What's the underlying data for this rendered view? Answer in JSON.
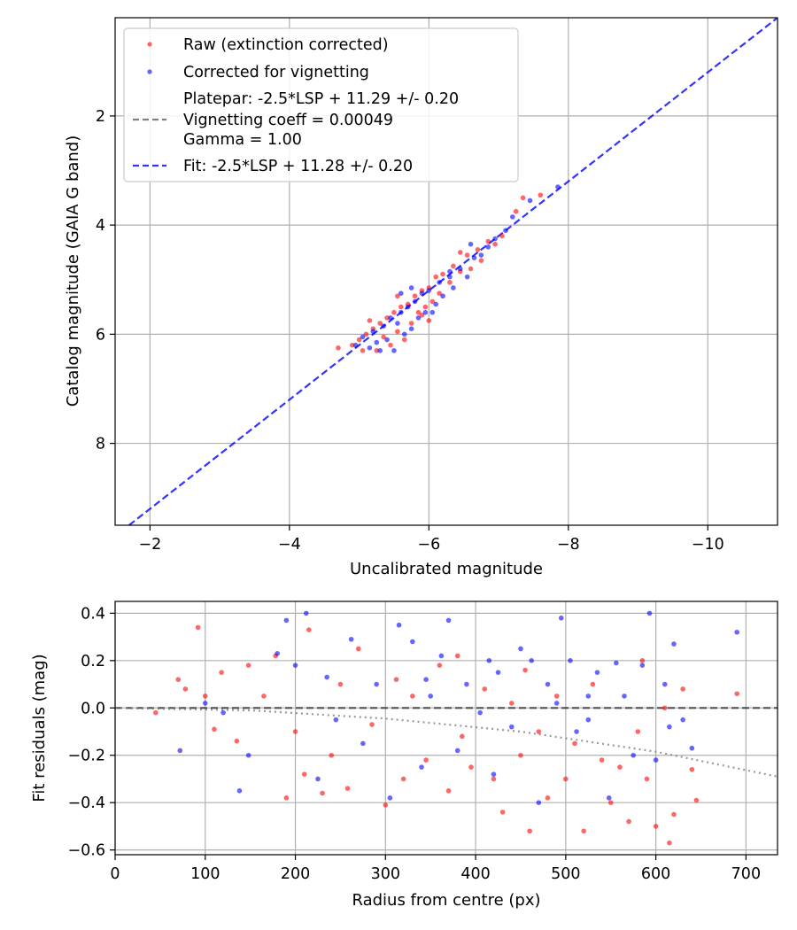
{
  "chart_data": [
    {
      "type": "scatter",
      "title": "",
      "xlabel": "Uncalibrated magnitude",
      "ylabel": "Catalog magnitude (GAIA G band)",
      "xlim": [
        -1.5,
        -11.0
      ],
      "ylim": [
        9.5,
        0.2
      ],
      "x_inverted": true,
      "y_inverted": true,
      "xticks": [
        -2,
        -4,
        -6,
        -8,
        -10
      ],
      "xtick_labels": [
        "−2",
        "−4",
        "−6",
        "−8",
        "−10"
      ],
      "yticks": [
        2,
        4,
        6,
        8
      ],
      "ytick_labels": [
        "2",
        "4",
        "6",
        "8"
      ],
      "grid": true,
      "legend_position": "upper-left",
      "legend": [
        {
          "label": "Raw (extinction corrected)",
          "kind": "marker",
          "color": "#ff0000"
        },
        {
          "label": "Corrected for vignetting",
          "kind": "marker",
          "color": "#0000ff"
        },
        {
          "label": "Platepar: -2.5*LSP + 11.29 +/- 0.20",
          "kind": "none",
          "color": ""
        },
        {
          "label": "Vignetting coeff = 0.00049",
          "kind": "line",
          "color": "#808080"
        },
        {
          "label": "Gamma = 1.00",
          "kind": "none",
          "color": ""
        },
        {
          "label": "Fit: -2.5*LSP + 11.28 +/- 0.20",
          "kind": "line",
          "color": "#0000ff"
        }
      ],
      "series": [
        {
          "name": "Raw (extinction corrected)",
          "color": "#ff0000",
          "values": [
            [
              -4.7,
              6.25
            ],
            [
              -4.9,
              6.2
            ],
            [
              -5.0,
              6.1
            ],
            [
              -5.1,
              6.0
            ],
            [
              -5.2,
              5.9
            ],
            [
              -5.25,
              6.3
            ],
            [
              -5.3,
              5.8
            ],
            [
              -5.35,
              6.05
            ],
            [
              -5.4,
              5.7
            ],
            [
              -5.45,
              6.2
            ],
            [
              -5.5,
              5.6
            ],
            [
              -5.55,
              5.95
            ],
            [
              -5.6,
              5.5
            ],
            [
              -5.65,
              6.1
            ],
            [
              -5.7,
              5.45
            ],
            [
              -5.75,
              5.8
            ],
            [
              -5.8,
              5.3
            ],
            [
              -5.85,
              5.6
            ],
            [
              -5.9,
              5.2
            ],
            [
              -5.95,
              5.5
            ],
            [
              -6.0,
              5.15
            ],
            [
              -6.05,
              5.4
            ],
            [
              -6.1,
              4.95
            ],
            [
              -6.15,
              5.25
            ],
            [
              -6.2,
              4.9
            ],
            [
              -6.3,
              5.05
            ],
            [
              -6.35,
              4.75
            ],
            [
              -6.45,
              4.85
            ],
            [
              -6.55,
              4.55
            ],
            [
              -6.6,
              4.8
            ],
            [
              -6.7,
              4.45
            ],
            [
              -6.75,
              4.65
            ],
            [
              -6.85,
              4.3
            ],
            [
              -6.95,
              4.35
            ],
            [
              -7.05,
              4.2
            ],
            [
              -7.25,
              3.75
            ],
            [
              -7.35,
              3.5
            ],
            [
              -7.6,
              3.45
            ],
            [
              -5.05,
              6.3
            ],
            [
              -5.55,
              5.3
            ],
            [
              -5.9,
              5.65
            ],
            [
              -6.0,
              5.75
            ],
            [
              -5.15,
              5.75
            ],
            [
              -6.45,
              4.5
            ]
          ]
        },
        {
          "name": "Corrected for vignetting",
          "color": "#0000ff",
          "values": [
            [
              -4.95,
              6.2
            ],
            [
              -5.05,
              6.05
            ],
            [
              -5.15,
              6.25
            ],
            [
              -5.2,
              5.95
            ],
            [
              -5.3,
              6.3
            ],
            [
              -5.35,
              5.85
            ],
            [
              -5.4,
              6.1
            ],
            [
              -5.45,
              5.7
            ],
            [
              -5.5,
              6.3
            ],
            [
              -5.55,
              5.8
            ],
            [
              -5.6,
              5.6
            ],
            [
              -5.65,
              6.0
            ],
            [
              -5.7,
              5.5
            ],
            [
              -5.75,
              5.9
            ],
            [
              -5.8,
              5.4
            ],
            [
              -5.85,
              5.7
            ],
            [
              -5.9,
              5.25
            ],
            [
              -5.95,
              5.6
            ],
            [
              -6.0,
              5.2
            ],
            [
              -6.1,
              5.45
            ],
            [
              -6.15,
              5.05
            ],
            [
              -6.2,
              5.3
            ],
            [
              -6.3,
              4.95
            ],
            [
              -6.35,
              5.15
            ],
            [
              -6.45,
              4.8
            ],
            [
              -6.55,
              4.95
            ],
            [
              -6.65,
              4.6
            ],
            [
              -6.75,
              4.55
            ],
            [
              -6.85,
              4.4
            ],
            [
              -6.95,
              4.25
            ],
            [
              -7.1,
              4.1
            ],
            [
              -7.2,
              3.85
            ],
            [
              -7.45,
              3.55
            ],
            [
              -7.85,
              3.3
            ],
            [
              -5.25,
              6.15
            ],
            [
              -5.6,
              5.25
            ],
            [
              -5.75,
              5.15
            ],
            [
              -6.05,
              5.6
            ],
            [
              -6.3,
              4.85
            ],
            [
              -6.6,
              4.35
            ]
          ]
        }
      ],
      "lines": [
        {
          "name": "Fit: -2.5*LSP + 11.28 +/- 0.20",
          "color": "#0000ff",
          "style": "dashed",
          "points": [
            [
              -1.7,
              9.5
            ],
            [
              -11.0,
              0.2
            ]
          ]
        }
      ]
    },
    {
      "type": "scatter",
      "title": "",
      "xlabel": "Radius from centre (px)",
      "ylabel": "Fit residuals (mag)",
      "xlim": [
        0,
        735
      ],
      "ylim": [
        -0.62,
        0.45
      ],
      "xticks": [
        0,
        100,
        200,
        300,
        400,
        500,
        600,
        700
      ],
      "xtick_labels": [
        "0",
        "100",
        "200",
        "300",
        "400",
        "500",
        "600",
        "700"
      ],
      "yticks": [
        0.4,
        0.2,
        0.0,
        -0.2,
        -0.4,
        -0.6
      ],
      "ytick_labels": [
        "0.4",
        "0.2",
        "0.0",
        "−0.2",
        "−0.4",
        "−0.6"
      ],
      "grid": true,
      "series": [
        {
          "name": "Raw (extinction corrected)",
          "color": "#ff0000",
          "values": [
            [
              45,
              -0.02
            ],
            [
              70,
              0.12
            ],
            [
              78,
              0.08
            ],
            [
              92,
              0.34
            ],
            [
              100,
              0.05
            ],
            [
              110,
              -0.09
            ],
            [
              118,
              0.15
            ],
            [
              135,
              -0.14
            ],
            [
              148,
              0.18
            ],
            [
              165,
              0.05
            ],
            [
              178,
              0.22
            ],
            [
              190,
              -0.38
            ],
            [
              200,
              -0.1
            ],
            [
              210,
              -0.28
            ],
            [
              215,
              0.33
            ],
            [
              230,
              -0.36
            ],
            [
              240,
              -0.2
            ],
            [
              250,
              0.1
            ],
            [
              258,
              -0.34
            ],
            [
              270,
              0.25
            ],
            [
              285,
              -0.07
            ],
            [
              300,
              -0.41
            ],
            [
              312,
              0.12
            ],
            [
              320,
              -0.3
            ],
            [
              330,
              0.05
            ],
            [
              345,
              -0.22
            ],
            [
              360,
              0.18
            ],
            [
              370,
              -0.35
            ],
            [
              385,
              -0.12
            ],
            [
              395,
              -0.25
            ],
            [
              410,
              0.08
            ],
            [
              420,
              -0.3
            ],
            [
              430,
              -0.44
            ],
            [
              440,
              0.02
            ],
            [
              450,
              -0.2
            ],
            [
              460,
              -0.52
            ],
            [
              470,
              -0.1
            ],
            [
              480,
              -0.38
            ],
            [
              490,
              0.05
            ],
            [
              500,
              -0.3
            ],
            [
              510,
              -0.15
            ],
            [
              520,
              -0.52
            ],
            [
              530,
              0.1
            ],
            [
              540,
              -0.22
            ],
            [
              550,
              -0.4
            ],
            [
              560,
              -0.25
            ],
            [
              570,
              -0.48
            ],
            [
              580,
              -0.1
            ],
            [
              590,
              -0.3
            ],
            [
              600,
              -0.5
            ],
            [
              610,
              0.0
            ],
            [
              615,
              -0.57
            ],
            [
              620,
              -0.45
            ],
            [
              630,
              0.08
            ],
            [
              640,
              -0.26
            ],
            [
              645,
              -0.39
            ],
            [
              690,
              0.06
            ],
            [
              380,
              0.22
            ],
            [
              455,
              0.16
            ],
            [
              585,
              0.2
            ]
          ]
        },
        {
          "name": "Corrected for vignetting",
          "color": "#0000ff",
          "values": [
            [
              72,
              -0.18
            ],
            [
              100,
              0.02
            ],
            [
              120,
              -0.02
            ],
            [
              138,
              -0.35
            ],
            [
              148,
              -0.2
            ],
            [
              180,
              0.23
            ],
            [
              190,
              0.37
            ],
            [
              200,
              0.18
            ],
            [
              212,
              0.4
            ],
            [
              225,
              -0.3
            ],
            [
              235,
              0.13
            ],
            [
              245,
              -0.05
            ],
            [
              262,
              0.29
            ],
            [
              275,
              -0.15
            ],
            [
              290,
              0.1
            ],
            [
              305,
              -0.38
            ],
            [
              315,
              0.35
            ],
            [
              330,
              0.28
            ],
            [
              340,
              -0.25
            ],
            [
              350,
              0.05
            ],
            [
              362,
              0.22
            ],
            [
              370,
              0.37
            ],
            [
              380,
              -0.18
            ],
            [
              390,
              0.1
            ],
            [
              405,
              -0.02
            ],
            [
              415,
              0.2
            ],
            [
              425,
              0.15
            ],
            [
              440,
              -0.08
            ],
            [
              450,
              0.25
            ],
            [
              462,
              0.2
            ],
            [
              470,
              -0.4
            ],
            [
              480,
              0.1
            ],
            [
              490,
              0.02
            ],
            [
              495,
              0.38
            ],
            [
              505,
              0.2
            ],
            [
              512,
              -0.1
            ],
            [
              525,
              0.05
            ],
            [
              535,
              0.15
            ],
            [
              548,
              -0.38
            ],
            [
              556,
              0.19
            ],
            [
              565,
              0.05
            ],
            [
              575,
              -0.2
            ],
            [
              585,
              0.18
            ],
            [
              593,
              0.4
            ],
            [
              600,
              -0.22
            ],
            [
              610,
              0.1
            ],
            [
              620,
              0.27
            ],
            [
              630,
              -0.05
            ],
            [
              640,
              -0.17
            ],
            [
              690,
              0.32
            ],
            [
              345,
              0.12
            ],
            [
              420,
              -0.28
            ],
            [
              525,
              -0.05
            ],
            [
              615,
              -0.08
            ]
          ]
        }
      ],
      "lines": [
        {
          "name": "zero",
          "color": "#333333",
          "style": "dashed",
          "points": [
            [
              0,
              0.0
            ],
            [
              735,
              0.0
            ]
          ]
        },
        {
          "name": "vignetting trend",
          "color": "#808080",
          "style": "dotted",
          "points": [
            [
              0,
              0.0
            ],
            [
              150,
              -0.01
            ],
            [
              300,
              -0.045
            ],
            [
              450,
              -0.1
            ],
            [
              600,
              -0.185
            ],
            [
              735,
              -0.29
            ]
          ]
        }
      ]
    }
  ]
}
